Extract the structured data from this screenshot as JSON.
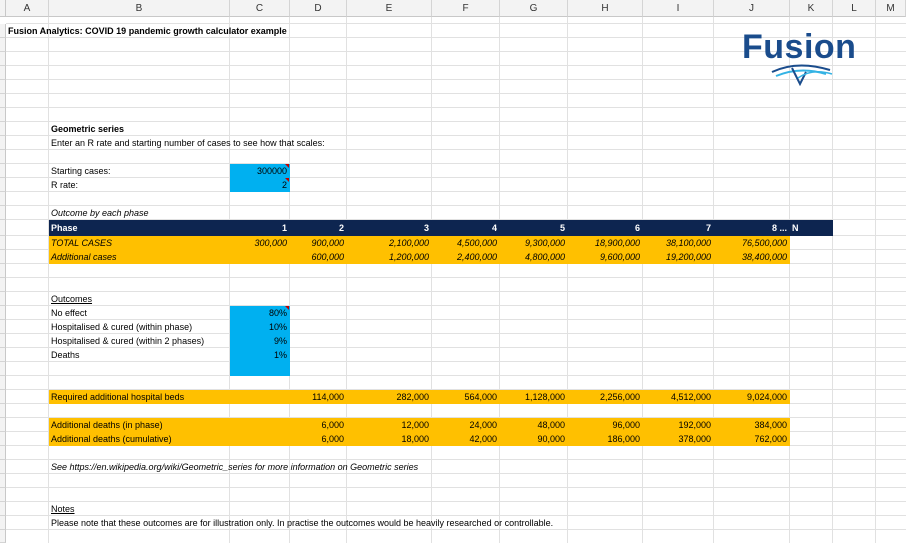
{
  "columns": [
    "A",
    "B",
    "C",
    "D",
    "E",
    "F",
    "G",
    "H",
    "I",
    "J",
    "K",
    "L",
    "M"
  ],
  "title": "Fusion Analytics: COVID 19 pandemic growth calculator example",
  "logo_text": "Fusion",
  "colors": {
    "navy": "#0d2550",
    "orange": "#ffc000",
    "blue": "#00b0f0",
    "logo_blue": "#1a4c8c",
    "logo_cyan": "#34b3e4"
  },
  "geometric": {
    "heading": "Geometric series",
    "intro": "Enter an R rate and starting number of cases to see how that scales:",
    "starting_label": "Starting cases:",
    "starting_value": "300000",
    "rrate_label": "R rate:",
    "rrate_value": "2"
  },
  "outcome_title": "Outcome by each phase",
  "phase_table": {
    "label": "Phase",
    "phases": [
      "1",
      "2",
      "3",
      "4",
      "5",
      "6",
      "7",
      "8 ...",
      "N"
    ],
    "rows": [
      {
        "label": "TOTAL CASES",
        "values": [
          "300,000",
          "900,000",
          "2,100,000",
          "4,500,000",
          "9,300,000",
          "18,900,000",
          "38,100,000",
          "76,500,000"
        ]
      },
      {
        "label": "Additional cases",
        "values": [
          "",
          "600,000",
          "1,200,000",
          "2,400,000",
          "4,800,000",
          "9,600,000",
          "19,200,000",
          "38,400,000"
        ]
      }
    ]
  },
  "outcomes": {
    "heading": "Outcomes",
    "items": [
      {
        "label": "No effect",
        "value": "80%"
      },
      {
        "label": "Hospitalised & cured (within phase)",
        "value": "10%"
      },
      {
        "label": "Hospitalised & cured (within 2 phases)",
        "value": "9%"
      },
      {
        "label": "Deaths",
        "value": "1%"
      }
    ]
  },
  "beds": {
    "label": "Required additional hospital beds",
    "values": [
      "114,000",
      "282,000",
      "564,000",
      "1,128,000",
      "2,256,000",
      "4,512,000",
      "9,024,000"
    ]
  },
  "deaths_phase": {
    "label": "Additional deaths (in phase)",
    "values": [
      "6,000",
      "12,000",
      "24,000",
      "48,000",
      "96,000",
      "192,000",
      "384,000"
    ]
  },
  "deaths_cum": {
    "label": "Additional deaths (cumulative)",
    "values": [
      "6,000",
      "18,000",
      "42,000",
      "90,000",
      "186,000",
      "378,000",
      "762,000"
    ]
  },
  "see_note": "See https://en.wikipedia.org/wiki/Geometric_series for more information on Geometric series",
  "notes": {
    "heading": "Notes",
    "text": "Please note that these outcomes are for illustration only. In practise the outcomes would be heavily researched or controllable."
  }
}
